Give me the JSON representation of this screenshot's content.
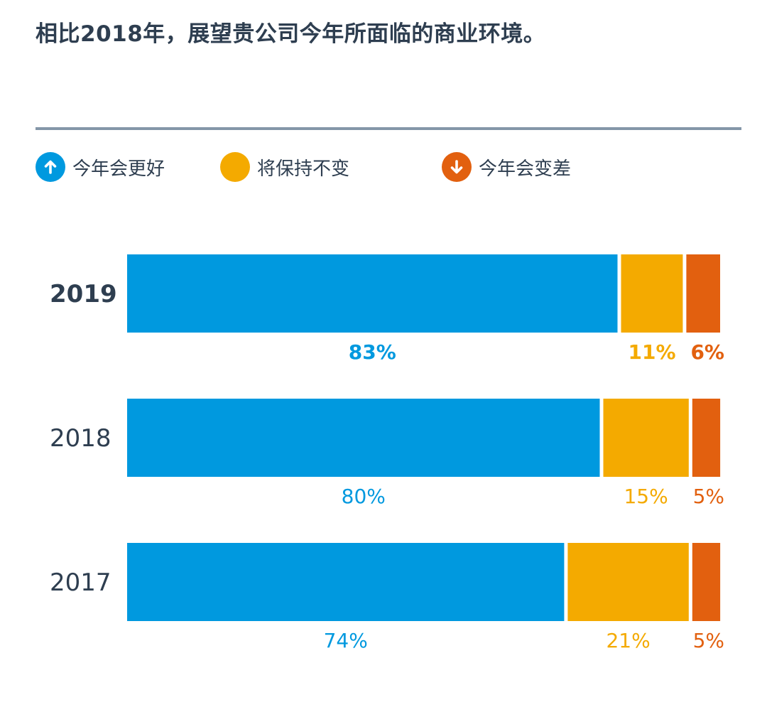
{
  "title": "相比2018年，展望贵公司今年所面临的商业环境。",
  "legend": [
    {
      "label": "今年会更好",
      "color": "#0099df",
      "icon": "arrow-up-icon"
    },
    {
      "label": "将保持不变",
      "color": "#f4aa00",
      "icon": "none"
    },
    {
      "label": "今年会变差",
      "color": "#e2600f",
      "icon": "arrow-down-icon"
    }
  ],
  "chart_data": {
    "type": "bar",
    "orientation": "horizontal",
    "stacked": true,
    "categories": [
      "2019",
      "2018",
      "2017"
    ],
    "highlight_category": "2019",
    "series": [
      {
        "name": "今年会更好",
        "color": "#0099df",
        "values": [
          83,
          80,
          74
        ]
      },
      {
        "name": "将保持不变",
        "color": "#f4aa00",
        "values": [
          11,
          15,
          21
        ]
      },
      {
        "name": "今年会变差",
        "color": "#e2600f",
        "values": [
          6,
          5,
          5
        ]
      }
    ],
    "value_suffix": "%",
    "xlim": [
      0,
      100
    ],
    "grid": false,
    "legend_position": "top-left"
  }
}
